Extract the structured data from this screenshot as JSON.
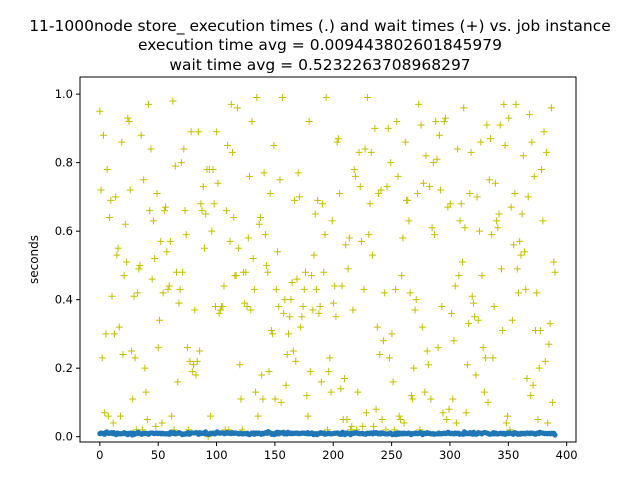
{
  "chart_data": {
    "type": "scatter",
    "title_lines": [
      "11-1000node store_ execution times (.) and wait times (+) vs. job instance",
      "execution time avg = 0.009443802601845979",
      "wait time avg = 0.5232263708968297"
    ],
    "xlabel": "",
    "ylabel": "seconds",
    "xlim": [
      -17,
      408
    ],
    "ylim": [
      -0.0155,
      1.05
    ],
    "xticks": [
      0,
      50,
      100,
      150,
      200,
      250,
      300,
      350,
      400
    ],
    "yticks": [
      0.0,
      0.2,
      0.4,
      0.6,
      0.8,
      1.0
    ],
    "xtick_labels": [
      "0",
      "50",
      "100",
      "150",
      "200",
      "250",
      "300",
      "350",
      "400"
    ],
    "ytick_labels": [
      "0.0",
      "0.2",
      "0.4",
      "0.6",
      "0.8",
      "1.0"
    ],
    "grid": false,
    "n_instances": 391,
    "series": [
      {
        "marker": "+",
        "color": "#bfbf00",
        "values": [
          0.95,
          0.72,
          0.23,
          0.88,
          0.07,
          0.3,
          0.78,
          0.06,
          0.64,
          0.69,
          0.41,
          0.04,
          0.3,
          0.7,
          0.53,
          0.55,
          0.32,
          0.06,
          0.86,
          0.24,
          0.47,
          0.62,
          0.51,
          0.93,
          0.92,
          0.72,
          0.25,
          0.11,
          0.41,
          0.23,
          0.02,
          0.42,
          0.49,
          0.5,
          0.88,
          0.02,
          0.75,
          0.2,
          0.13,
          0.05,
          0.97,
          0.66,
          0.84,
          0.46,
          0.63,
          0.52,
          0.03,
          0.71,
          0.26,
          0.34,
          0.57,
          0.04,
          0.42,
          0.66,
          0.67,
          0.54,
          0.43,
          0.44,
          0.57,
          0.06,
          0.98,
          0.02,
          0.79,
          0.48,
          0.16,
          0.39,
          0.43,
          0.8,
          0.48,
          0.84,
          0.66,
          0.59,
          0.26,
          0.02,
          0.22,
          0.89,
          0.19,
          0.21,
          0.37,
          0.18,
          0.22,
          0.89,
          0.25,
          0.68,
          0.66,
          0.73,
          0.55,
          0.65,
          0.78,
          0.0,
          0.78,
          0.06,
          0.6,
          0.78,
          0.68,
          0.38,
          0.89,
          0.74,
          0.36,
          0.37,
          0.38,
          0.38,
          0.44,
          0.02,
          0.66,
          0.85,
          0.02,
          0.57,
          0.97,
          0.83,
          0.64,
          0.47,
          0.47,
          0.96,
          0.55,
          0.21,
          0.11,
          0.02,
          0.48,
          0.39,
          0.48,
          0.38,
          0.58,
          0.76,
          0.37,
          0.92,
          0.52,
          0.43,
          0.13,
          0.99,
          0.06,
          0.62,
          0.64,
          0.18,
          0.11,
          0.77,
          0.59,
          0.5,
          0.48,
          0.19,
          0.71,
          0.31,
          0.3,
          0.85,
          0.11,
          0.43,
          0.54,
          0.38,
          0.75,
          0.1,
          0.99,
          0.36,
          0.4,
          0.15,
          0.24,
          0.3,
          0.35,
          0.4,
          0.45,
          0.25,
          0.69,
          0.22,
          0.46,
          0.77,
          0.7,
          0.32,
          0.35,
          0.38,
          0.43,
          0.48,
          0.12,
          0.06,
          0.92,
          0.19,
          0.47,
          0.37,
          0.53,
          0.65,
          0.43,
          0.69,
          0.36,
          0.38,
          0.16,
          0.68,
          0.48,
          0.59,
          0.99,
          0.02,
          0.19,
          0.23,
          0.13,
          0.63,
          0.39,
          0.44,
          0.35,
          0.86,
          0.87,
          0.71,
          0.14,
          0.44,
          0.05,
          0.17,
          0.56,
          0.05,
          0.49,
          0.58,
          0.02,
          0.03,
          0.37,
          0.78,
          0.76,
          0.02,
          0.13,
          0.83,
          0.73,
          0.57,
          0.03,
          0.43,
          0.84,
          0.07,
          0.99,
          0.59,
          0.68,
          0.83,
          0.53,
          0.03,
          0.9,
          0.08,
          0.32,
          0.71,
          0.24,
          0.72,
          0.05,
          0.28,
          0.42,
          0.02,
          0.73,
          0.9,
          0.23,
          0.8,
          0.3,
          0.16,
          0.02,
          0.43,
          0.92,
          0.76,
          0.06,
          0.05,
          0.47,
          0.58,
          0.04,
          0.86,
          0.69,
          0.69,
          0.63,
          0.42,
          0.12,
          0.11,
          0.2,
          0.37,
          0.4,
          0.71,
          0.97,
          0.02,
          0.91,
          0.32,
          0.74,
          0.13,
          0.82,
          0.25,
          0.21,
          0.73,
          0.11,
          0.61,
          0.8,
          0.59,
          0.92,
          0.81,
          0.26,
          0.88,
          0.72,
          0.38,
          0.07,
          0.92,
          0.93,
          0.05,
          0.67,
          0.08,
          0.68,
          0.36,
          0.11,
          0.28,
          0.44,
          0.04,
          0.84,
          0.47,
          0.63,
          0.68,
          0.51,
          0.96,
          0.61,
          0.07,
          0.21,
          0.33,
          0.71,
          0.83,
          0.41,
          0.39,
          0.35,
          0.18,
          0.7,
          0.34,
          0.6,
          0.86,
          0.47,
          0.26,
          0.13,
          0.23,
          0.91,
          0.1,
          0.75,
          0.87,
          0.59,
          0.23,
          0.38,
          0.74,
          0.63,
          0.61,
          0.65,
          0.91,
          0.49,
          0.31,
          0.97,
          0.85,
          0.04,
          0.06,
          0.93,
          0.02,
          0.67,
          0.34,
          0.56,
          0.71,
          0.97,
          0.49,
          0.42,
          0.57,
          0.53,
          0.65,
          0.82,
          0.54,
          0.43,
          0.17,
          0.7,
          0.94,
          0.12,
          0.86,
          0.15,
          0.76,
          0.31,
          0.42,
          0.05,
          0.2,
          0.31,
          0.78,
          0.63,
          0.89,
          0.22,
          0.83,
          0.04,
          0.27,
          0.33,
          0.96,
          0.1,
          0.51,
          0.48
        ]
      },
      {
        "marker": ".",
        "color": "#1f77b4",
        "values": [
          0.009,
          0.011,
          0.01,
          0.009,
          0.007,
          0.012,
          0.014,
          0.01,
          0.01,
          0.01,
          0.012,
          0.009,
          0.012,
          0.008,
          0.006,
          0.011,
          0.008,
          0.009,
          0.008,
          0.009,
          0.009,
          0.012,
          0.009,
          0.009,
          0.006,
          0.01,
          0.009,
          0.011,
          0.005,
          0.01,
          0.007,
          0.009,
          0.01,
          0.013,
          0.01,
          0.009,
          0.007,
          0.009,
          0.01,
          0.009,
          0.01,
          0.009,
          0.007,
          0.01,
          0.011,
          0.011,
          0.01,
          0.009,
          0.01,
          0.011,
          0.009,
          0.01,
          0.01,
          0.008,
          0.01,
          0.009,
          0.008,
          0.009,
          0.008,
          0.009,
          0.007,
          0.013,
          0.01,
          0.01,
          0.012,
          0.008,
          0.009,
          0.01,
          0.012,
          0.011,
          0.009,
          0.006,
          0.008,
          0.007,
          0.009,
          0.008,
          0.012,
          0.007,
          0.009,
          0.011,
          0.011,
          0.011,
          0.011,
          0.012,
          0.011,
          0.007,
          0.012,
          0.009,
          0.01,
          0.011,
          0.009,
          0.014,
          0.008,
          0.008,
          0.007,
          0.01,
          0.01,
          0.009,
          0.011,
          0.008,
          0.01,
          0.014,
          0.011,
          0.01,
          0.011,
          0.011,
          0.011,
          0.009,
          0.009,
          0.012,
          0.012,
          0.01,
          0.011,
          0.009,
          0.012,
          0.01,
          0.01,
          0.011,
          0.01,
          0.009,
          0.008,
          0.01,
          0.009,
          0.008,
          0.009,
          0.009,
          0.009,
          0.01,
          0.007,
          0.006,
          0.008,
          0.011,
          0.011,
          0.007,
          0.011,
          0.011,
          0.009,
          0.011,
          0.009,
          0.007,
          0.01,
          0.008,
          0.011,
          0.012,
          0.01,
          0.015,
          0.011,
          0.011,
          0.007,
          0.009,
          0.006,
          0.007,
          0.012,
          0.013,
          0.008,
          0.012,
          0.011,
          0.011,
          0.013,
          0.008,
          0.01,
          0.008,
          0.013,
          0.01,
          0.009,
          0.011,
          0.009,
          0.01,
          0.01,
          0.01,
          0.011,
          0.009,
          0.009,
          0.01,
          0.01,
          0.011,
          0.01,
          0.01,
          0.009,
          0.012,
          0.008,
          0.009,
          0.011,
          0.011,
          0.006,
          0.008,
          0.009,
          0.006,
          0.009,
          0.009,
          0.012,
          0.01,
          0.01,
          0.011,
          0.007,
          0.008,
          0.009,
          0.01,
          0.009,
          0.008,
          0.009,
          0.009,
          0.01,
          0.01,
          0.011,
          0.011,
          0.008,
          0.007,
          0.007,
          0.013,
          0.011,
          0.006,
          0.011,
          0.011,
          0.009,
          0.009,
          0.006,
          0.01,
          0.01,
          0.01,
          0.011,
          0.012,
          0.01,
          0.009,
          0.009,
          0.009,
          0.01,
          0.008,
          0.008,
          0.007,
          0.01,
          0.01,
          0.009,
          0.011,
          0.011,
          0.008,
          0.012,
          0.01,
          0.012,
          0.01,
          0.008,
          0.011,
          0.008,
          0.011,
          0.01,
          0.009,
          0.008,
          0.008,
          0.008,
          0.009,
          0.011,
          0.009,
          0.006,
          0.007,
          0.009,
          0.006,
          0.011,
          0.007,
          0.011,
          0.008,
          0.01,
          0.008,
          0.011,
          0.009,
          0.009,
          0.009,
          0.011,
          0.009,
          0.006,
          0.009,
          0.009,
          0.009,
          0.011,
          0.009,
          0.009,
          0.01,
          0.012,
          0.011,
          0.006,
          0.01,
          0.01,
          0.009,
          0.012,
          0.01,
          0.01,
          0.008,
          0.008,
          0.009,
          0.007,
          0.008,
          0.008,
          0.008,
          0.011,
          0.008,
          0.009,
          0.009,
          0.01,
          0.01,
          0.009,
          0.01,
          0.013,
          0.01,
          0.009,
          0.01,
          0.009,
          0.008,
          0.011,
          0.009,
          0.01,
          0.01,
          0.007,
          0.008,
          0.008,
          0.007,
          0.014,
          0.009,
          0.009,
          0.01,
          0.009,
          0.012,
          0.009,
          0.007,
          0.013,
          0.009,
          0.007,
          0.008,
          0.012,
          0.011,
          0.01,
          0.008,
          0.011,
          0.012,
          0.012,
          0.011,
          0.01,
          0.008,
          0.007,
          0.008,
          0.008,
          0.012,
          0.008,
          0.011,
          0.008,
          0.008,
          0.009,
          0.01,
          0.01,
          0.008,
          0.01,
          0.007,
          0.008,
          0.011,
          0.009,
          0.011,
          0.01,
          0.009,
          0.007,
          0.012,
          0.01,
          0.01,
          0.007,
          0.009,
          0.007,
          0.01,
          0.009,
          0.01,
          0.008,
          0.01,
          0.011,
          0.01,
          0.009,
          0.011,
          0.01,
          0.01,
          0.009,
          0.007,
          0.009,
          0.011,
          0.009,
          0.013,
          0.011,
          0.011,
          0.01,
          0.009,
          0.01,
          0.009,
          0.009,
          0.01,
          0.008,
          0.01,
          0.009,
          0.01,
          0.005
        ]
      }
    ]
  }
}
